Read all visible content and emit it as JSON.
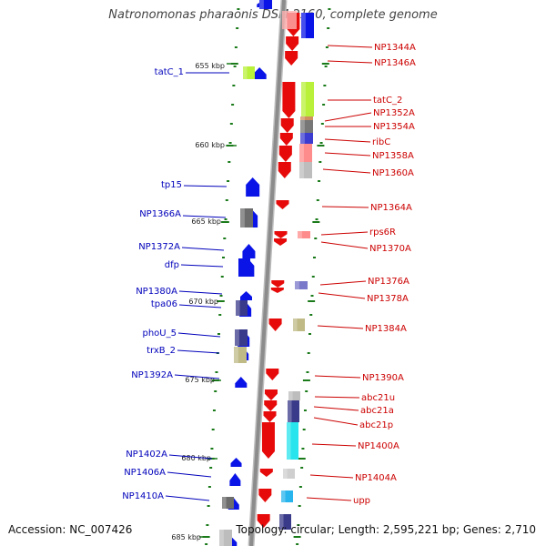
{
  "header": {
    "title": "Natronomonas pharaonis DSM 2160, complete genome"
  },
  "footer": {
    "accession": "Accession: NC_007426",
    "topology": "Topology: circular; Length: 2,595,221 bp; Genes: 2,710"
  },
  "colors": {
    "reverse_strand": "#0a14e6",
    "forward_strand": "#e60a0a",
    "forward_label": "#cc0000",
    "reverse_label": "#0000bb",
    "backbone": "#8c8c8c",
    "tick": "#1a7a1a",
    "cog_palette": [
      "#b8f03a",
      "#6c6c6c",
      "#9a98c8",
      "#bfba86",
      "#3a3a8a",
      "#777777",
      "#9a9aa8",
      "#28e4ec",
      "#d09a9a",
      "#ff8c8c",
      "#3c3cd0"
    ]
  },
  "scale_labels": [
    "655 kbp",
    "660 kbp",
    "665 kbp",
    "670 kbp",
    "675 kbp",
    "680 kbp",
    "685 kbp"
  ],
  "reverse_genes": [
    {
      "label": "tatC_1",
      "cog_color": "#b8f03a"
    },
    {
      "label": "tp15",
      "cog_color": null
    },
    {
      "label": "NP1366A",
      "cog_color": "#6c6c6c"
    },
    {
      "label": "NP1372A",
      "cog_color": null
    },
    {
      "label": "dfp",
      "cog_color": "#0a14e6"
    },
    {
      "label": "NP1380A",
      "cog_color": null
    },
    {
      "label": "tpa06",
      "cog_color": "#3a3a8a"
    },
    {
      "label": "phoU_5",
      "cog_color": "#3a3a8a"
    },
    {
      "label": "trxB_2",
      "cog_color": "#bfba86"
    },
    {
      "label": "NP1392A",
      "cog_color": null
    },
    {
      "label": "NP1402A",
      "cog_color": null
    },
    {
      "label": "NP1406A",
      "cog_color": null
    },
    {
      "label": "NP1410A",
      "cog_color": "#6c6c6c"
    }
  ],
  "forward_genes": [
    {
      "label": "NP1344A",
      "cog_color": "#0a14e6"
    },
    {
      "label": "NP1346A",
      "cog_color": null
    },
    {
      "label": "tatC_2",
      "cog_color": "#b8f03a"
    },
    {
      "label": "NP1352A",
      "cog_color": "#d09060"
    },
    {
      "label": "NP1354A",
      "cog_color": "#777777"
    },
    {
      "label": "ribC",
      "cog_color": "#3c3cd0"
    },
    {
      "label": "NP1358A",
      "cog_color": "#ff8c8c"
    },
    {
      "label": "NP1360A",
      "cog_color": "#bdbdbd"
    },
    {
      "label": "NP1364A",
      "cog_color": null
    },
    {
      "label": "rps6R",
      "cog_color": "#ff8c8c"
    },
    {
      "label": "NP1370A",
      "cog_color": null
    },
    {
      "label": "NP1376A",
      "cog_color": "#7a78c8"
    },
    {
      "label": "NP1378A",
      "cog_color": null
    },
    {
      "label": "NP1384A",
      "cog_color": "#bfba86"
    },
    {
      "label": "NP1390A",
      "cog_color": null
    },
    {
      "label": "abc21u",
      "cog_color": "#bdbdbd"
    },
    {
      "label": "abc21a",
      "cog_color": "#3a3a8a"
    },
    {
      "label": "abc21p",
      "cog_color": "#9a9aa8"
    },
    {
      "label": "NP1400A",
      "cog_color": "#28e4ec"
    },
    {
      "label": "NP1404A",
      "cog_color": "#cfcfcf"
    },
    {
      "label": "upp",
      "cog_color": "#28b4ec"
    }
  ]
}
